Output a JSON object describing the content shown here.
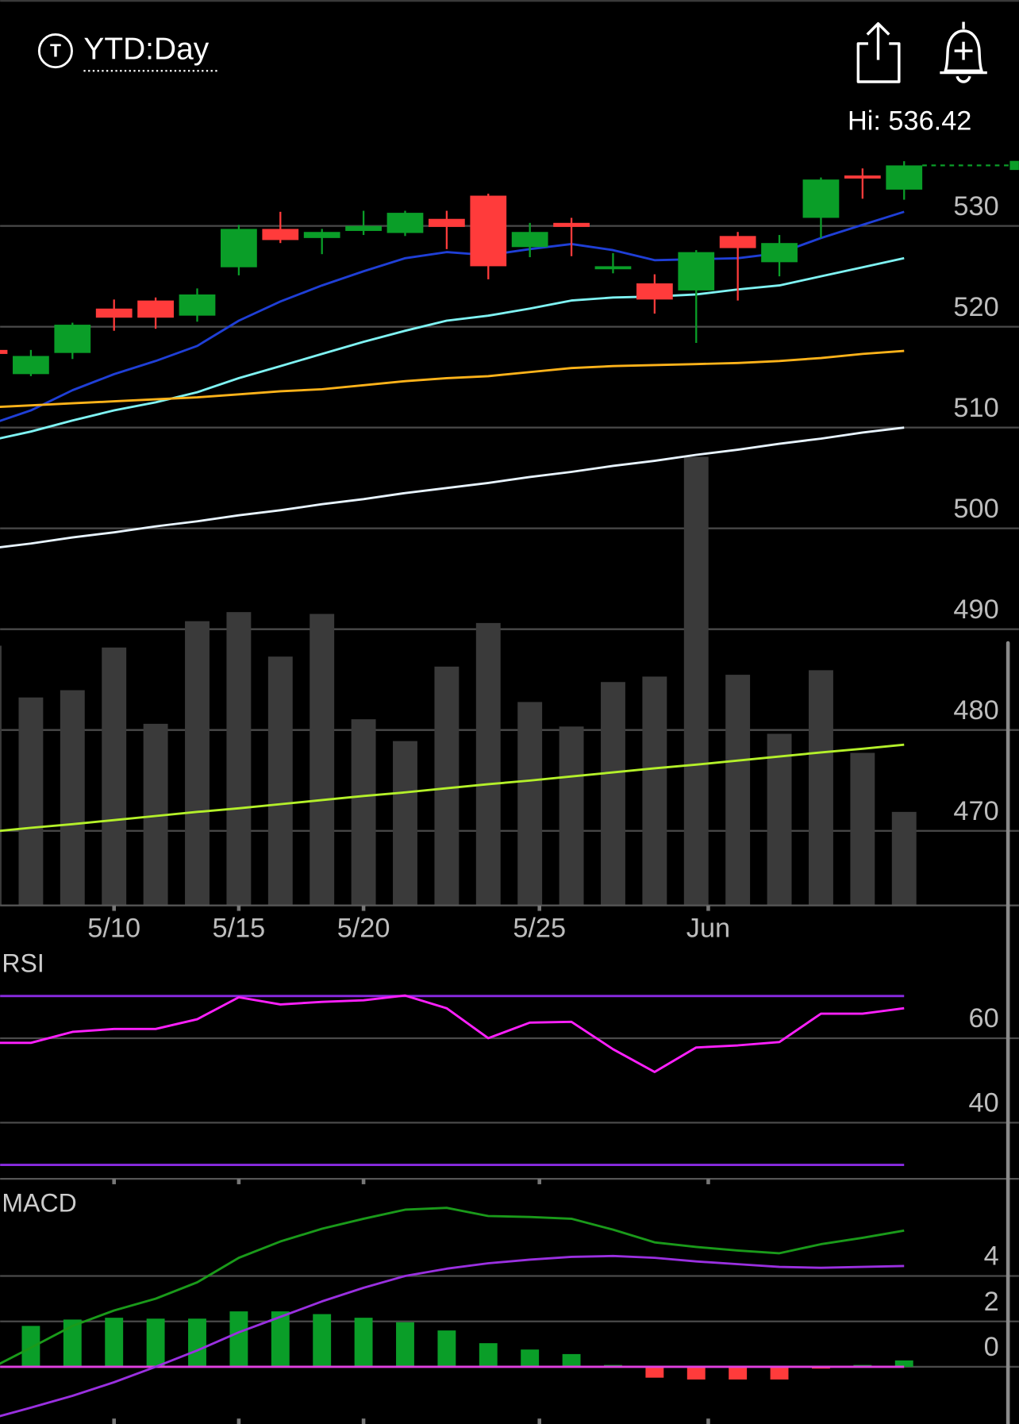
{
  "header": {
    "range_label": "YTD:Day"
  },
  "chart_data": [
    {
      "type": "candlestick",
      "x": [
        0,
        1,
        2,
        3,
        4,
        5,
        6,
        7,
        8,
        9,
        10,
        11,
        12,
        13,
        14,
        15,
        16,
        17,
        18,
        19,
        20,
        21,
        22
      ],
      "xlim": [
        0.26,
        24.76
      ],
      "xticks": [
        {
          "value": 3,
          "label": "5/10"
        },
        {
          "value": 6,
          "label": "5/15"
        },
        {
          "value": 9,
          "label": "5/20"
        },
        {
          "value": 13.23,
          "label": "5/25"
        },
        {
          "value": 17.29,
          "label": "Jun"
        }
      ],
      "ylim": [
        462.6,
        543.4
      ],
      "yticks": [
        470,
        480,
        490,
        500,
        510,
        520,
        530
      ],
      "grid": true,
      "high_label": "Hi: 536.42",
      "up_color": "#0a9e28",
      "down_color": "#ff3b3b",
      "open": [
        517.7,
        515.3,
        517.4,
        521.8,
        522.6,
        521.1,
        525.9,
        529.7,
        528.8,
        529.5,
        529.3,
        530.7,
        533.0,
        527.9,
        530.3,
        525.7,
        524.3,
        523.6,
        529.0,
        526.4,
        530.8,
        535.0,
        533.6
      ],
      "high": [
        517.9,
        517.7,
        520.4,
        522.7,
        522.9,
        523.8,
        530.1,
        531.4,
        529.7,
        531.5,
        531.5,
        531.5,
        533.2,
        530.3,
        530.8,
        527.3,
        525.2,
        527.6,
        529.4,
        529.1,
        534.8,
        535.7,
        536.42
      ],
      "low": [
        517.1,
        515.1,
        516.8,
        519.6,
        519.8,
        520.5,
        525.1,
        528.3,
        527.2,
        529.1,
        529.0,
        527.7,
        524.7,
        526.9,
        527.0,
        525.3,
        521.3,
        518.4,
        522.6,
        525.0,
        528.8,
        532.7,
        532.6
      ],
      "close": [
        517.3,
        517.1,
        520.2,
        520.9,
        520.9,
        523.2,
        529.7,
        528.6,
        529.4,
        530.0,
        531.3,
        529.9,
        526.0,
        529.4,
        529.9,
        526.0,
        522.7,
        527.4,
        527.8,
        528.3,
        534.6,
        534.7,
        536.0
      ],
      "lines": [
        {
          "color": "#1f3fd6",
          "values": [
            510.3,
            511.7,
            513.7,
            515.3,
            516.6,
            518.1,
            520.6,
            522.5,
            524.1,
            525.5,
            526.8,
            527.4,
            527.1,
            527.7,
            528.2,
            527.6,
            526.6,
            526.7,
            526.8,
            527.3,
            528.8,
            530.1,
            531.4
          ]
        },
        {
          "color": "#7ff3f3",
          "values": [
            508.7,
            509.6,
            510.7,
            511.7,
            512.5,
            513.5,
            514.9,
            516.1,
            517.3,
            518.5,
            519.6,
            520.6,
            521.1,
            521.8,
            522.6,
            522.9,
            523.0,
            523.2,
            523.7,
            524.1,
            525.0,
            525.9,
            526.8
          ]
        },
        {
          "color": "#ffb31a",
          "values": [
            512.0,
            512.2,
            512.4,
            512.6,
            512.8,
            513.0,
            513.3,
            513.6,
            513.8,
            514.2,
            514.6,
            514.9,
            515.1,
            515.5,
            515.9,
            516.1,
            516.2,
            516.3,
            516.4,
            516.6,
            516.9,
            517.3,
            517.6
          ]
        },
        {
          "color": "#e8f4ff",
          "values": [
            498.0,
            498.5,
            499.1,
            499.6,
            500.2,
            500.7,
            501.3,
            501.8,
            502.4,
            502.9,
            503.5,
            504.0,
            504.5,
            505.1,
            505.6,
            506.2,
            506.7,
            507.3,
            507.8,
            508.4,
            508.9,
            509.5,
            510.0
          ]
        }
      ],
      "volume": {
        "color": "#3a3a3a",
        "lim": [
          0,
          100
        ],
        "values": [
          57.2,
          45.8,
          47.4,
          56.8,
          40.0,
          62.6,
          64.6,
          54.8,
          64.2,
          41.0,
          36.2,
          52.6,
          62.2,
          44.8,
          39.4,
          49.2,
          50.4,
          98.8,
          50.8,
          37.8,
          51.8,
          33.6,
          20.6
        ],
        "ma": {
          "color": "#b4f02a",
          "values": [
            16.2,
            17.1,
            17.9,
            18.8,
            19.7,
            20.6,
            21.4,
            22.3,
            23.2,
            24.1,
            24.9,
            25.8,
            26.7,
            27.5,
            28.4,
            29.3,
            30.2,
            31.0,
            31.9,
            32.8,
            33.7,
            34.5,
            35.4
          ]
        }
      }
    },
    {
      "type": "line",
      "title": "RSI",
      "ylim": [
        26.7,
        82.2
      ],
      "yticks": [
        40,
        60
      ],
      "grid": true,
      "levels": [
        30,
        70
      ],
      "level_color": "#8a2be2",
      "series": [
        {
          "color": "#ff20ff",
          "values": [
            58.9,
            58.9,
            61.5,
            62.2,
            62.2,
            64.5,
            69.7,
            68.0,
            68.6,
            69.0,
            70.1,
            67.1,
            60.0,
            63.7,
            63.9,
            57.4,
            52.0,
            57.8,
            58.3,
            59.1,
            65.8,
            65.8,
            67.1
          ]
        }
      ]
    },
    {
      "type": "macd",
      "title": "MACD",
      "ylim": [
        -2.52,
        7.8
      ],
      "yticks": [
        0,
        2,
        4
      ],
      "grid": true,
      "zero_color": "#e040e0",
      "series": [
        {
          "color": "#1a9a1a",
          "values": [
            -0.1,
            0.84,
            1.8,
            2.48,
            3.0,
            3.72,
            4.8,
            5.52,
            6.08,
            6.52,
            6.92,
            7.0,
            6.64,
            6.6,
            6.52,
            6.04,
            5.48,
            5.28,
            5.12,
            5.0,
            5.4,
            5.68,
            6.0
          ]
        },
        {
          "color": "#9a30e0",
          "values": [
            -2.3,
            -1.8,
            -1.28,
            -0.68,
            0,
            0.72,
            1.52,
            2.2,
            2.88,
            3.48,
            4.0,
            4.32,
            4.56,
            4.72,
            4.84,
            4.88,
            4.8,
            4.64,
            4.52,
            4.4,
            4.36,
            4.4,
            4.44
          ]
        }
      ],
      "histogram": {
        "up_color": "#0a9e28",
        "down_color": "#ff3b3b",
        "values": [
          null,
          1.8,
          2.08,
          2.16,
          2.12,
          2.12,
          2.44,
          2.44,
          2.32,
          2.16,
          1.96,
          1.6,
          1.04,
          0.76,
          0.56,
          0.08,
          -0.48,
          -0.56,
          -0.56,
          -0.56,
          -0.08,
          0.08,
          0.28
        ]
      }
    }
  ]
}
